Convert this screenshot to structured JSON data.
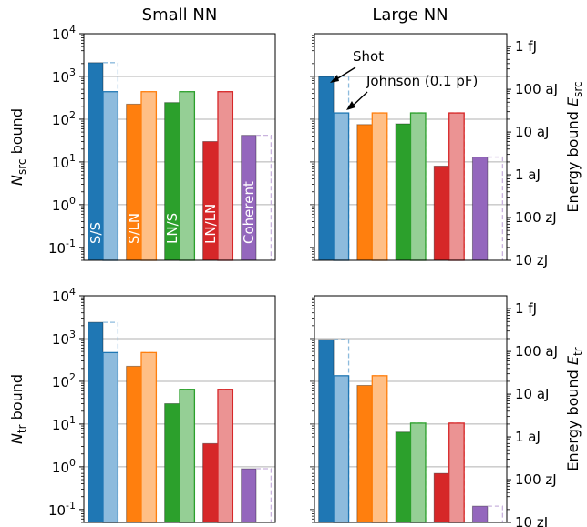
{
  "column_titles": [
    "Small NN",
    "Large NN"
  ],
  "chart_data": [
    {
      "panel": "top-left",
      "type": "bar",
      "scale": "log",
      "ylim": [
        0.05,
        10000
      ],
      "ylabel_base": "N",
      "ylabel_sub": "src",
      "ylabel_rest": " bound",
      "yticks": [
        0.1,
        1,
        10,
        100,
        1000,
        10000
      ],
      "ytick_exp": [
        "-1",
        "0",
        "1",
        "2",
        "3",
        "4"
      ],
      "gridlines": [
        1,
        10,
        100,
        1000,
        10000
      ],
      "groups": [
        {
          "label": "S/S",
          "color": "#1f77b4",
          "light": "#8dbbdd",
          "dark": 2100,
          "shot_line": 2100,
          "light_val": 440,
          "john_line": 2100
        },
        {
          "label": "S/LN",
          "color": "#ff7f0e",
          "light": "#ffbf86",
          "dark": 225,
          "shot_line": 440,
          "light_val": 440,
          "john_line": 440
        },
        {
          "label": "LN/S",
          "color": "#2ca02c",
          "light": "#95cf95",
          "dark": 245,
          "shot_line": 440,
          "light_val": 440,
          "john_line": 440
        },
        {
          "label": "LN/LN",
          "color": "#d62728",
          "light": "#eb9393",
          "dark": 30,
          "shot_line": 440,
          "light_val": 440,
          "john_line": 440
        },
        {
          "label": "Coherent",
          "color": "#9467bd",
          "light": "#c9b3de",
          "dark": 42,
          "shot_line": 42,
          "light_val": null,
          "john_line": 42
        }
      ]
    },
    {
      "panel": "top-right",
      "type": "bar",
      "scale": "log",
      "ylim": [
        0.05,
        10000
      ],
      "y2label_base": "Energy bound E",
      "y2label_sub": "src",
      "y2ticks": [
        "1 fJ",
        "100 aJ",
        "10 aJ",
        "1 aJ",
        "100 zJ",
        "10 zJ"
      ],
      "y2tick_values": [
        5000,
        500,
        50,
        5,
        0.5,
        0.05
      ],
      "gridlines": [
        1,
        10,
        100,
        1000,
        10000
      ],
      "annotations": [
        "Shot",
        "Johnson (0.1 pF)"
      ],
      "groups": [
        {
          "color": "#1f77b4",
          "light": "#8dbbdd",
          "dark": 1000,
          "shot_line": 1000,
          "light_val": 140,
          "john_line": 1000
        },
        {
          "color": "#ff7f0e",
          "light": "#ffbf86",
          "dark": 75,
          "shot_line": 140,
          "light_val": 140,
          "john_line": 140
        },
        {
          "color": "#2ca02c",
          "light": "#95cf95",
          "dark": 78,
          "shot_line": 140,
          "light_val": 140,
          "john_line": 140
        },
        {
          "color": "#d62728",
          "light": "#eb9393",
          "dark": 8,
          "shot_line": 140,
          "light_val": 140,
          "john_line": 140
        },
        {
          "color": "#9467bd",
          "light": "#c9b3de",
          "dark": 13,
          "shot_line": 13,
          "light_val": null,
          "john_line": 13
        }
      ]
    },
    {
      "panel": "bottom-left",
      "type": "bar",
      "scale": "log",
      "ylim": [
        0.05,
        10000
      ],
      "ylabel_base": "N",
      "ylabel_sub": "tr",
      "ylabel_rest": " bound",
      "yticks": [
        0.1,
        1,
        10,
        100,
        1000,
        10000
      ],
      "ytick_exp": [
        "-1",
        "0",
        "1",
        "2",
        "3",
        "4"
      ],
      "gridlines": [
        1,
        10,
        100,
        1000,
        10000
      ],
      "groups": [
        {
          "color": "#1f77b4",
          "light": "#8dbbdd",
          "dark": 2400,
          "shot_line": 2400,
          "light_val": 470,
          "john_line": 2400
        },
        {
          "color": "#ff7f0e",
          "light": "#ffbf86",
          "dark": 225,
          "shot_line": 470,
          "light_val": 470,
          "john_line": 470
        },
        {
          "color": "#2ca02c",
          "light": "#95cf95",
          "dark": 30,
          "shot_line": 65,
          "light_val": 65,
          "john_line": 65
        },
        {
          "color": "#d62728",
          "light": "#eb9393",
          "dark": 3.5,
          "shot_line": 65,
          "light_val": 65,
          "john_line": 65
        },
        {
          "color": "#9467bd",
          "light": "#c9b3de",
          "dark": 0.9,
          "shot_line": 0.9,
          "light_val": null,
          "john_line": 0.9
        }
      ]
    },
    {
      "panel": "bottom-right",
      "type": "bar",
      "scale": "log",
      "ylim": [
        0.05,
        10000
      ],
      "y2label_base": "Energy bound E",
      "y2label_sub": "tr",
      "y2ticks": [
        "1 fJ",
        "100 aJ",
        "10 aJ",
        "1 aJ",
        "100 zJ",
        "10 zJ"
      ],
      "y2tick_values": [
        5000,
        500,
        50,
        5,
        0.5,
        0.05
      ],
      "gridlines": [
        1,
        10,
        100,
        1000,
        10000
      ],
      "groups": [
        {
          "color": "#1f77b4",
          "light": "#8dbbdd",
          "dark": 950,
          "shot_line": 950,
          "light_val": 135,
          "john_line": 950
        },
        {
          "color": "#ff7f0e",
          "light": "#ffbf86",
          "dark": 80,
          "shot_line": 135,
          "light_val": 135,
          "john_line": 135
        },
        {
          "color": "#2ca02c",
          "light": "#95cf95",
          "dark": 6.5,
          "shot_line": 10.5,
          "light_val": 10.5,
          "john_line": 10.5
        },
        {
          "color": "#d62728",
          "light": "#eb9393",
          "dark": 0.7,
          "shot_line": 10.5,
          "light_val": 10.5,
          "john_line": 10.5
        },
        {
          "color": "#9467bd",
          "light": "#c9b3de",
          "dark": 0.12,
          "shot_line": 0.12,
          "light_val": null,
          "john_line": 0.12
        }
      ]
    }
  ]
}
